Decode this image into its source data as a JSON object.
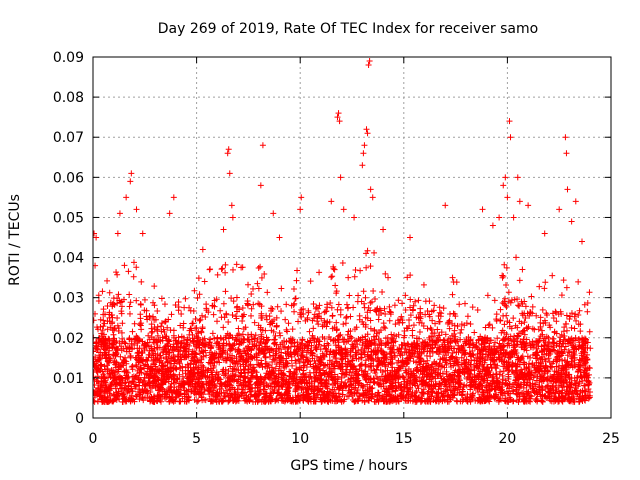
{
  "chart_data": {
    "type": "scatter",
    "title": "Day 269 of 2019, Rate Of TEC Index for receiver samo",
    "xlabel": "GPS time / hours",
    "ylabel": "ROTI / TECUs",
    "xlim": [
      0,
      25
    ],
    "ylim": [
      0,
      0.09
    ],
    "xticks": [
      0,
      5,
      10,
      15,
      20,
      25
    ],
    "yticks": [
      0,
      0.01,
      0.02,
      0.03,
      0.04,
      0.05,
      0.06,
      0.07,
      0.08,
      0.09
    ],
    "xtick_labels": [
      "0",
      "5",
      "10",
      "15",
      "20",
      "25"
    ],
    "ytick_labels": [
      "0",
      "0.01",
      "0.02",
      "0.03",
      "0.04",
      "0.05",
      "0.06",
      "0.07",
      "0.08",
      "0.09"
    ],
    "grid": true,
    "marker": "plus",
    "color": "#ff0000",
    "x_extent": [
      0,
      24
    ],
    "density_envelope": {
      "x": [
        0,
        1,
        2,
        3,
        4,
        5,
        6,
        7,
        8,
        9,
        10,
        11,
        12,
        13,
        14,
        15,
        16,
        17,
        18,
        19,
        20,
        21,
        22,
        23,
        24
      ],
      "y_high": [
        0.03,
        0.04,
        0.04,
        0.033,
        0.03,
        0.035,
        0.04,
        0.04,
        0.038,
        0.038,
        0.038,
        0.038,
        0.04,
        0.045,
        0.04,
        0.04,
        0.04,
        0.036,
        0.034,
        0.03,
        0.042,
        0.038,
        0.036,
        0.036,
        0.032
      ]
    },
    "points": [
      [
        0.05,
        0.046
      ],
      [
        0.1,
        0.038
      ],
      [
        0.15,
        0.045
      ],
      [
        1.2,
        0.046
      ],
      [
        1.3,
        0.051
      ],
      [
        1.6,
        0.055
      ],
      [
        1.8,
        0.059
      ],
      [
        1.85,
        0.061
      ],
      [
        2.1,
        0.052
      ],
      [
        2.4,
        0.046
      ],
      [
        3.9,
        0.055
      ],
      [
        3.7,
        0.051
      ],
      [
        5.3,
        0.042
      ],
      [
        6.3,
        0.047
      ],
      [
        6.5,
        0.066
      ],
      [
        6.55,
        0.067
      ],
      [
        6.6,
        0.061
      ],
      [
        6.7,
        0.053
      ],
      [
        6.75,
        0.05
      ],
      [
        8.2,
        0.068
      ],
      [
        8.1,
        0.058
      ],
      [
        8.7,
        0.051
      ],
      [
        9.0,
        0.045
      ],
      [
        10.0,
        0.052
      ],
      [
        10.05,
        0.055
      ],
      [
        11.5,
        0.054
      ],
      [
        11.8,
        0.075
      ],
      [
        11.85,
        0.076
      ],
      [
        11.9,
        0.074
      ],
      [
        11.95,
        0.06
      ],
      [
        12.1,
        0.052
      ],
      [
        12.6,
        0.05
      ],
      [
        13.0,
        0.063
      ],
      [
        13.05,
        0.066
      ],
      [
        13.1,
        0.068
      ],
      [
        13.2,
        0.072
      ],
      [
        13.25,
        0.071
      ],
      [
        13.3,
        0.088
      ],
      [
        13.35,
        0.089
      ],
      [
        13.4,
        0.057
      ],
      [
        13.5,
        0.055
      ],
      [
        14.0,
        0.047
      ],
      [
        15.3,
        0.045
      ],
      [
        17.0,
        0.053
      ],
      [
        18.8,
        0.052
      ],
      [
        19.3,
        0.048
      ],
      [
        19.6,
        0.05
      ],
      [
        19.8,
        0.058
      ],
      [
        19.9,
        0.06
      ],
      [
        20.0,
        0.055
      ],
      [
        20.1,
        0.074
      ],
      [
        20.15,
        0.07
      ],
      [
        20.3,
        0.05
      ],
      [
        20.5,
        0.06
      ],
      [
        20.6,
        0.054
      ],
      [
        21.0,
        0.053
      ],
      [
        21.8,
        0.046
      ],
      [
        22.5,
        0.052
      ],
      [
        22.8,
        0.07
      ],
      [
        22.85,
        0.066
      ],
      [
        22.9,
        0.057
      ],
      [
        23.3,
        0.054
      ],
      [
        23.1,
        0.049
      ],
      [
        23.6,
        0.044
      ]
    ]
  }
}
